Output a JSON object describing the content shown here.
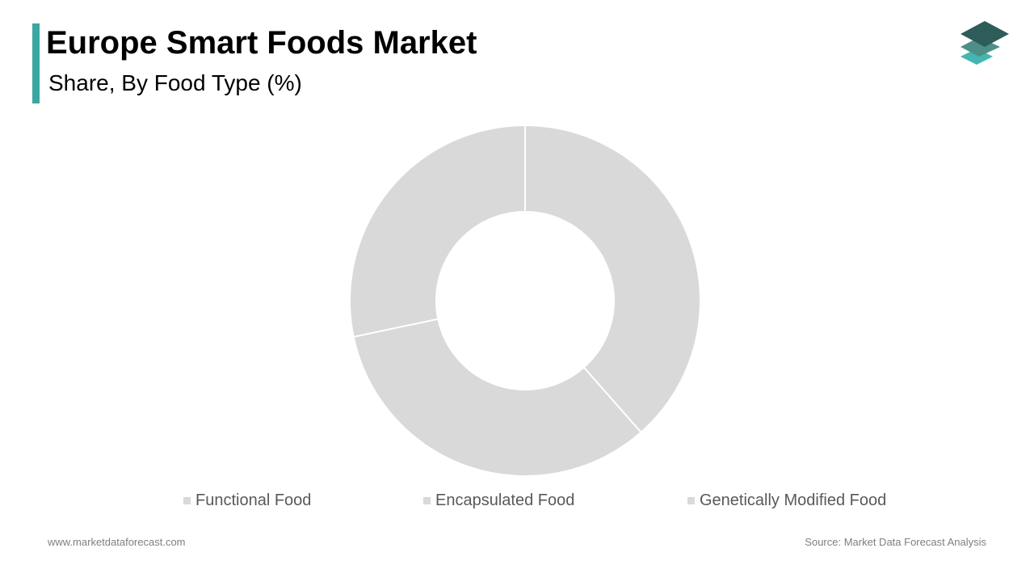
{
  "header": {
    "title": "Europe Smart Foods Market",
    "subtitle": "Share, By Food Type (%)"
  },
  "chart_data": {
    "type": "pie",
    "donut": true,
    "categories": [
      "Functional Food",
      "Encapsulated Food",
      "Genetically Modified Food"
    ],
    "values": [
      38.5,
      33.2,
      28.3
    ],
    "colors": [
      "#d9d9d9",
      "#d9d9d9",
      "#d9d9d9"
    ],
    "legend_position": "bottom"
  },
  "footer": {
    "website": "www.marketdataforecast.com",
    "source": "Source: Market Data Forecast Analysis"
  },
  "logo": {
    "icon": "stacked-layers-logo",
    "colors": [
      "#2e5c58",
      "#4d8f88",
      "#45b5b0"
    ]
  }
}
